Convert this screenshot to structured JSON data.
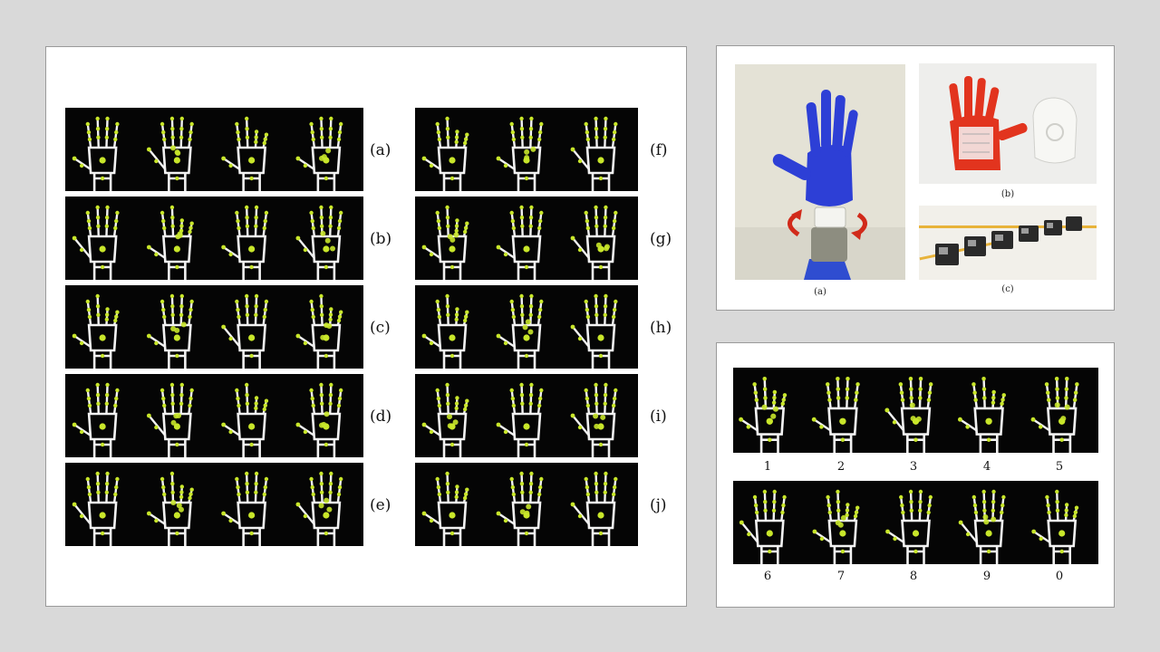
{
  "gesture_panel": {
    "left_column_labels": [
      "(a)",
      "(b)",
      "(c)",
      "(d)",
      "(e)"
    ],
    "right_column_labels": [
      "(f)",
      "(g)",
      "(h)",
      "(i)",
      "(j)"
    ],
    "left_hands_per_row": 4,
    "right_hands_per_row": 3
  },
  "hardware_panel": {
    "captions": {
      "a": "(a)",
      "b": "(b)",
      "c": "(c)"
    }
  },
  "digits_panel": {
    "row1_labels": [
      "1",
      "2",
      "3",
      "4",
      "5"
    ],
    "row2_labels": [
      "6",
      "7",
      "8",
      "9",
      "0"
    ]
  },
  "colors": {
    "skeleton": "#f2f2f2",
    "joint": "#c8e62a",
    "strip_background": "#050505",
    "hand_blue": "#2d3fd6",
    "hand_red": "#e2341e",
    "arrow_red": "#d12a1a"
  }
}
